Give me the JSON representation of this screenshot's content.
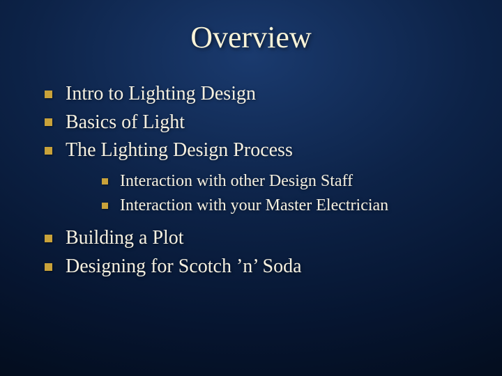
{
  "title": "Overview",
  "colors": {
    "text": "#f5f0e0",
    "title": "#f8f3d8",
    "bullet": "#c9a23a",
    "bg_center": "#1a3a6e",
    "bg_mid": "#0d2348",
    "bg_outer": "#061530",
    "bg_edge": "#020812"
  },
  "typography": {
    "title_fontsize": 44,
    "level1_fontsize": 28,
    "level2_fontsize": 24,
    "font_family": "Georgia, Times New Roman, serif"
  },
  "bullets": [
    {
      "text": "Intro to Lighting Design"
    },
    {
      "text": "Basics of Light"
    },
    {
      "text": "The Lighting Design Process",
      "children": [
        {
          "text": "Interaction with other Design Staff"
        },
        {
          "text": "Interaction with your Master Electrician"
        }
      ]
    },
    {
      "text": "Building a Plot"
    },
    {
      "text": "Designing for Scotch ’n’ Soda"
    }
  ]
}
